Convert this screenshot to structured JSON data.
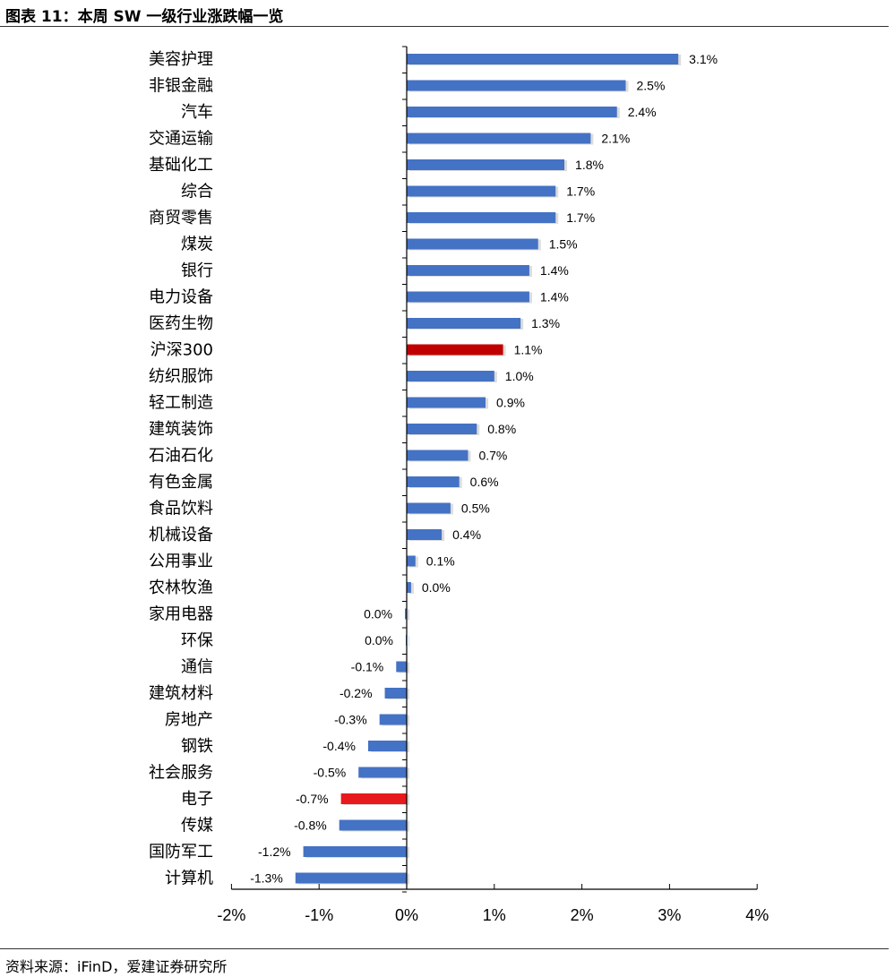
{
  "header": {
    "title": "图表 11：本周 SW 一级行业涨跌幅一览"
  },
  "footer": {
    "source": "资料来源：iFinD，爱建证券研究所"
  },
  "colors": {
    "bar": "#4472C4",
    "highlight_dark": "#C00000",
    "highlight_bright": "#E8191C"
  },
  "chart_data": {
    "type": "bar",
    "orientation": "horizontal",
    "title": "",
    "xlabel": "",
    "ylabel": "",
    "xlim": [
      -0.02,
      0.04
    ],
    "x_ticks": [
      "-2%",
      "-1%",
      "0%",
      "1%",
      "2%",
      "3%",
      "4%"
    ],
    "categories": [
      "美容护理",
      "非银金融",
      "汽车",
      "交通运输",
      "基础化工",
      "综合",
      "商贸零售",
      "煤炭",
      "银行",
      "电力设备",
      "医药生物",
      "沪深300",
      "纺织服饰",
      "轻工制造",
      "建筑装饰",
      "石油石化",
      "有色金属",
      "食品饮料",
      "机械设备",
      "公用事业",
      "农林牧渔",
      "家用电器",
      "环保",
      "通信",
      "建筑材料",
      "房地产",
      "钢铁",
      "社会服务",
      "电子",
      "传媒",
      "国防军工",
      "计算机"
    ],
    "values": [
      3.1,
      2.5,
      2.4,
      2.1,
      1.8,
      1.7,
      1.7,
      1.5,
      1.4,
      1.4,
      1.3,
      1.1,
      1.0,
      0.9,
      0.8,
      0.7,
      0.6,
      0.5,
      0.4,
      0.1,
      0.05,
      -0.02,
      -0.01,
      -0.12,
      -0.25,
      -0.31,
      -0.44,
      -0.55,
      -0.75,
      -0.77,
      -1.18,
      -1.27
    ],
    "labels": [
      "3.1%",
      "2.5%",
      "2.4%",
      "2.1%",
      "1.8%",
      "1.7%",
      "1.7%",
      "1.5%",
      "1.4%",
      "1.4%",
      "1.3%",
      "1.1%",
      "1.0%",
      "0.9%",
      "0.8%",
      "0.7%",
      "0.6%",
      "0.5%",
      "0.4%",
      "0.1%",
      "0.0%",
      "0.0%",
      "0.0%",
      "-0.1%",
      "-0.2%",
      "-0.3%",
      "-0.4%",
      "-0.5%",
      "-0.7%",
      "-0.8%",
      "-1.2%",
      "-1.3%"
    ],
    "highlight": {
      "沪深300": "highlight_dark",
      "电子": "highlight_bright"
    },
    "grid": false,
    "legend": "none"
  }
}
